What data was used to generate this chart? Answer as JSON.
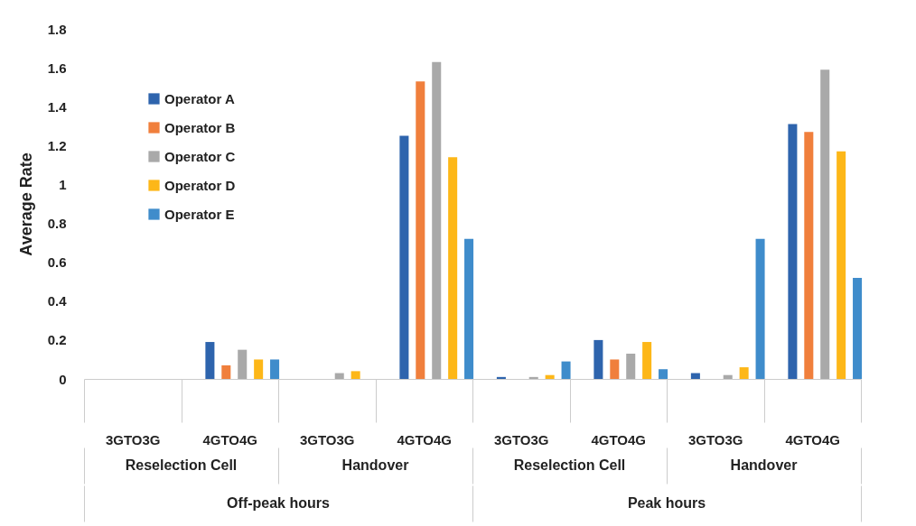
{
  "chart_data": {
    "type": "bar",
    "ylabel": "Average Rate",
    "categories": [
      "3GTO3G",
      "4GTO4G",
      "3GTO3G",
      "4GTO4G",
      "3GTO3G",
      "4GTO4G",
      "3GTO3G",
      "4GTO4G"
    ],
    "annotations": [
      "Reselection Cell",
      "Handover",
      "Reselection Cell",
      "Handover",
      "Off-peak hours",
      "Peak hours"
    ],
    "series": [
      {
        "name": "Operator A",
        "color": "#2e64ad",
        "values": [
          0,
          0.19,
          0,
          1.25,
          0.01,
          0.2,
          0.03,
          1.31
        ]
      },
      {
        "name": "Operator B",
        "color": "#f07f3c",
        "values": [
          0,
          0.07,
          0,
          1.53,
          0,
          0.1,
          0,
          1.27
        ]
      },
      {
        "name": "Operator C",
        "color": "#a9a9a9",
        "values": [
          0,
          0.15,
          0.03,
          1.63,
          0.01,
          0.13,
          0.02,
          1.59
        ]
      },
      {
        "name": "Operator D",
        "color": "#fdb718",
        "values": [
          0,
          0.1,
          0.04,
          1.14,
          0.02,
          0.19,
          0.06,
          1.17
        ]
      },
      {
        "name": "Operator E",
        "color": "#3f8ccb",
        "values": [
          0,
          0.1,
          0,
          0.72,
          0.09,
          0.05,
          0.72,
          0.52
        ]
      }
    ],
    "ylim": [
      0,
      1.8
    ],
    "yticks": [
      0,
      0.2,
      0.4,
      0.6,
      0.8,
      1,
      1.2,
      1.4,
      1.6,
      1.8
    ],
    "grid": false,
    "legend": "top left"
  }
}
